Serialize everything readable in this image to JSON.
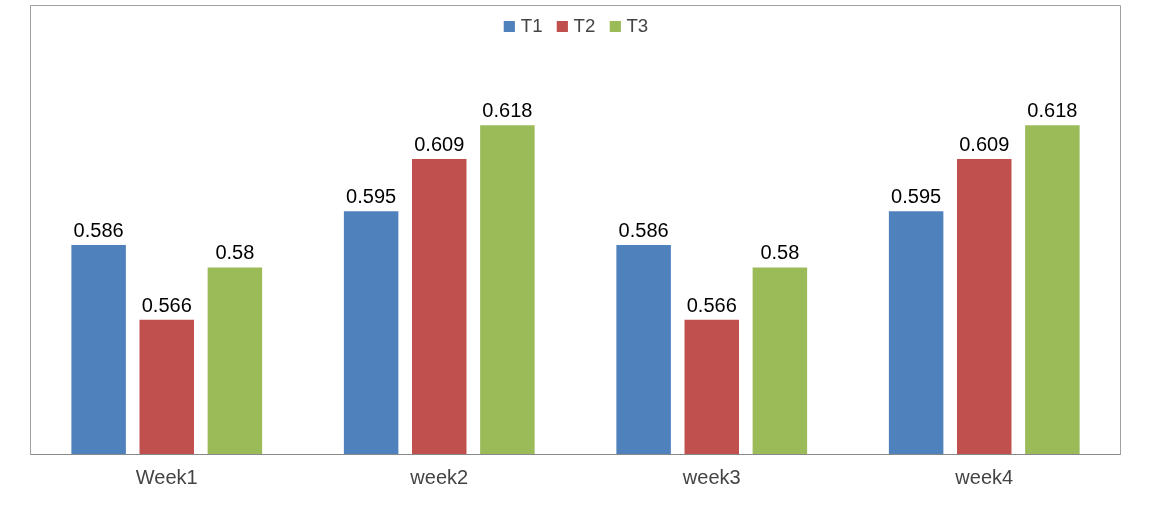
{
  "chart_data": {
    "type": "bar",
    "categories": [
      "Week1",
      "week2",
      "week3",
      "week4"
    ],
    "series": [
      {
        "name": "T1",
        "color": "#4f81bd",
        "values": [
          0.586,
          0.595,
          0.586,
          0.595
        ]
      },
      {
        "name": "T2",
        "color": "#c0504d",
        "values": [
          0.566,
          0.609,
          0.566,
          0.609
        ]
      },
      {
        "name": "T3",
        "color": "#9bbb59",
        "values": [
          0.58,
          0.618,
          0.58,
          0.618
        ]
      }
    ],
    "ylim": [
      0.53,
      0.65
    ],
    "data_labels": true,
    "legend": "top",
    "grid": false,
    "tick_labels": "x"
  }
}
